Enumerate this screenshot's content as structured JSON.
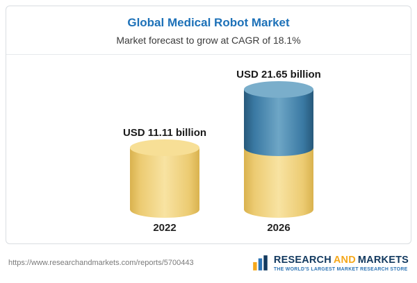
{
  "header": {
    "title": "Global Medical Robot Market",
    "subtitle": "Market forecast to grow at CAGR of 18.1%"
  },
  "chart_data": {
    "type": "bar",
    "bar_style": "3d-cylinder",
    "title": "Global Medical Robot Market",
    "subtitle": "Market forecast to grow at CAGR of 18.1%",
    "cagr": "18.1%",
    "unit": "USD billion",
    "categories": [
      "2022",
      "2026"
    ],
    "values": [
      11.11,
      21.65
    ],
    "value_labels": [
      "USD 11.11 billion",
      "USD 21.65 billion"
    ],
    "ylim": [
      0,
      25
    ],
    "grid": false,
    "legend": false,
    "bars": [
      {
        "category": "2022",
        "total": 11.11,
        "segments": [
          {
            "name": "market-size-2022",
            "value": 11.11,
            "color": "#f2d179"
          }
        ]
      },
      {
        "category": "2026",
        "total": 21.65,
        "segments": [
          {
            "name": "base-2022-equivalent",
            "value": 11.11,
            "color": "#f2d179"
          },
          {
            "name": "growth-to-2026",
            "value": 10.54,
            "color": "#417fa8"
          }
        ]
      }
    ]
  },
  "footer": {
    "url": "https://www.researchandmarkets.com/reports/5700443",
    "logo": {
      "word1": "RESEARCH",
      "word2": "AND",
      "word3": "MARKETS",
      "tagline": "THE WORLD'S LARGEST MARKET RESEARCH STORE"
    }
  },
  "colors": {
    "title_blue": "#1d71b8",
    "bar_yellow": "#f2d179",
    "bar_blue": "#417fa8",
    "logo_navy": "#12395f",
    "logo_orange": "#f5a81c"
  }
}
